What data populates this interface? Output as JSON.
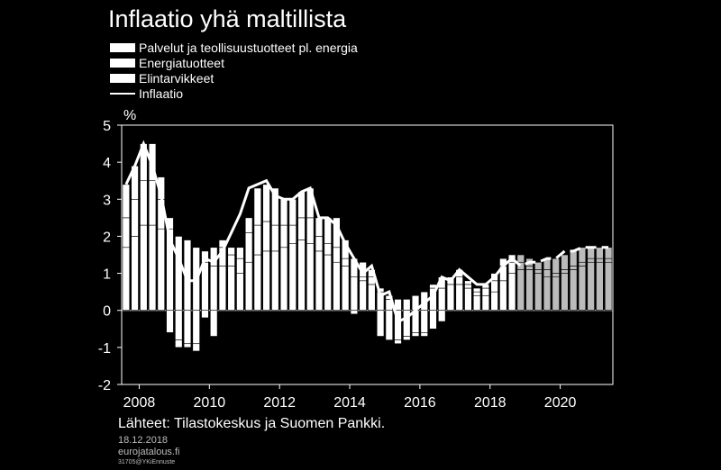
{
  "title": "Inflaatio yhä maltillista",
  "legend": [
    {
      "label": "Palvelut ja teollisuustuotteet pl. energia",
      "kind": "bar"
    },
    {
      "label": "Energiatuotteet",
      "kind": "bar"
    },
    {
      "label": "Elintarvikkeet",
      "kind": "bar"
    },
    {
      "label": "Inflaatio",
      "kind": "line"
    }
  ],
  "footer": {
    "source": "Lähteet: Tilastokeskus ja Suomen Pankki.",
    "date": "18.12.2018",
    "site": "eurojatalous.fi",
    "code": "31705@YKiEnnuste"
  },
  "colors": {
    "background": "#000000",
    "history": "#ffffff",
    "forecast": "#bbbbbb",
    "line": "#ffffff"
  },
  "chart_data": {
    "type": "bar",
    "title": "Inflaatio yhä maltillista",
    "ylabel": "%",
    "ylim": [
      -2,
      5
    ],
    "yticks": [
      -2,
      -1,
      0,
      1,
      2,
      3,
      4,
      5
    ],
    "xlim": [
      2007.5,
      2021.5
    ],
    "xtick_labels": [
      "2008",
      "2010",
      "2012",
      "2014",
      "2016",
      "2018",
      "2020"
    ],
    "stacked": true,
    "forecast_from": 2018.75,
    "quarters": [
      2007.5,
      2007.75,
      2008.0,
      2008.25,
      2008.5,
      2008.75,
      2009.0,
      2009.25,
      2009.5,
      2009.75,
      2010.0,
      2010.25,
      2010.5,
      2010.75,
      2011.0,
      2011.25,
      2011.5,
      2011.75,
      2012.0,
      2012.25,
      2012.5,
      2012.75,
      2013.0,
      2013.25,
      2013.5,
      2013.75,
      2014.0,
      2014.25,
      2014.5,
      2014.75,
      2015.0,
      2015.25,
      2015.5,
      2015.75,
      2016.0,
      2016.25,
      2016.5,
      2016.75,
      2017.0,
      2017.25,
      2017.5,
      2017.75,
      2018.0,
      2018.25,
      2018.5,
      2018.75,
      2019.0,
      2019.25,
      2019.5,
      2019.75,
      2020.0,
      2020.25,
      2020.5,
      2020.75,
      2021.0,
      2021.25
    ],
    "series": [
      {
        "name": "Palvelut ja teollisuustuotteet pl. energia",
        "values": [
          1.7,
          2.0,
          2.3,
          2.3,
          2.2,
          2.2,
          2.0,
          1.9,
          1.7,
          1.3,
          1.2,
          1.2,
          1.2,
          1.0,
          1.3,
          1.5,
          1.6,
          1.6,
          1.7,
          1.8,
          1.9,
          1.8,
          1.6,
          1.5,
          1.3,
          1.2,
          0.9,
          0.8,
          0.7,
          0.5,
          0.3,
          0.3,
          0.3,
          0.4,
          0.5,
          0.6,
          0.6,
          0.7,
          0.7,
          0.6,
          0.4,
          0.4,
          0.5,
          0.8,
          1.0,
          1.1,
          1.1,
          1.0,
          0.9,
          0.9,
          1.0,
          1.1,
          1.2,
          1.3,
          1.3,
          1.3
        ]
      },
      {
        "name": "Energiatuotteet",
        "values": [
          0.8,
          1.0,
          1.2,
          1.2,
          0.8,
          -0.6,
          -0.8,
          -0.9,
          -0.9,
          0.3,
          0.5,
          0.5,
          0.3,
          0.4,
          0.8,
          0.8,
          0.8,
          0.7,
          0.6,
          0.5,
          0.6,
          0.7,
          0.4,
          0.3,
          0.4,
          0.2,
          -0.1,
          0.1,
          0.2,
          -0.7,
          -0.8,
          -0.8,
          -0.7,
          -0.6,
          -0.6,
          -0.5,
          -0.3,
          0.0,
          0.2,
          0.1,
          0.1,
          0.2,
          0.3,
          0.4,
          0.3,
          0.2,
          0.1,
          0.1,
          0.2,
          0.1,
          0.1,
          0.1,
          0.1,
          0.1,
          0.1,
          0.1
        ]
      },
      {
        "name": "Elintarvikkeet",
        "values": [
          0.9,
          0.9,
          1.0,
          1.0,
          0.6,
          0.3,
          -0.2,
          -0.1,
          -0.2,
          -0.2,
          -0.7,
          0.2,
          0.2,
          0.3,
          0.4,
          1.0,
          1.0,
          1.0,
          0.7,
          0.7,
          0.7,
          0.8,
          0.5,
          0.7,
          0.8,
          0.5,
          0.5,
          0.4,
          0.2,
          0.1,
          0.1,
          -0.1,
          -0.1,
          -0.1,
          -0.1,
          0.1,
          0.3,
          0.2,
          0.2,
          0.1,
          0.1,
          0.1,
          0.2,
          0.2,
          0.2,
          0.2,
          0.2,
          0.2,
          0.3,
          0.4,
          0.4,
          0.4,
          0.4,
          0.3,
          0.3,
          0.3
        ]
      },
      {
        "name": "Inflaatio",
        "kind": "line",
        "values": [
          3.4,
          3.9,
          4.5,
          3.9,
          3.1,
          1.9,
          1.4,
          0.8,
          0.8,
          1.4,
          1.3,
          1.6,
          2.1,
          2.6,
          3.3,
          3.4,
          3.5,
          3.1,
          3.0,
          3.0,
          3.2,
          3.3,
          2.5,
          2.5,
          2.3,
          1.8,
          1.4,
          1.0,
          1.2,
          0.4,
          0.5,
          -0.3,
          -0.2,
          0.0,
          0.2,
          0.4,
          0.9,
          0.8,
          1.1,
          0.9,
          0.7,
          0.7,
          0.9,
          1.2,
          1.4,
          1.2,
          1.3,
          1.3,
          1.4,
          1.4,
          1.6,
          1.6,
          1.7,
          1.7,
          1.7,
          1.7
        ]
      }
    ]
  }
}
